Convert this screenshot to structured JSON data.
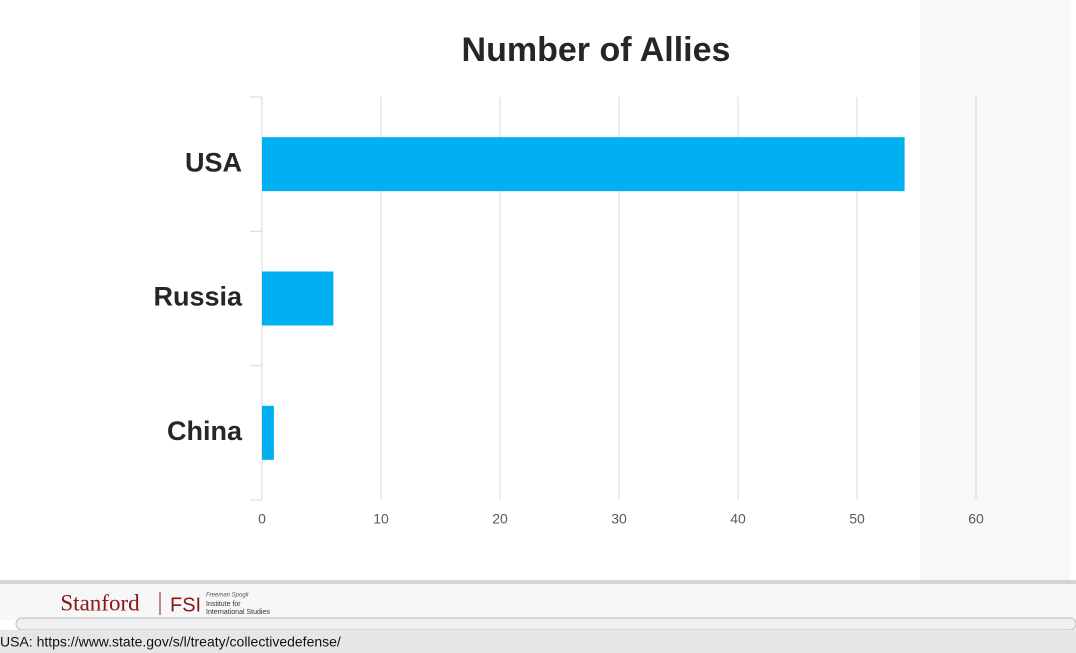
{
  "chart_data": {
    "type": "bar",
    "orientation": "horizontal",
    "title": "Number of Allies",
    "categories": [
      "USA",
      "Russia",
      "China"
    ],
    "values": [
      54,
      6,
      1
    ],
    "color": "#00b0f0",
    "xlim": [
      0,
      60
    ],
    "xticks": [
      0,
      10,
      20,
      30,
      40,
      50,
      60
    ],
    "grid": true
  },
  "footer": {
    "logo": "Stanford",
    "fsi": "FSI",
    "fsi_lines": [
      "Freeman Spogli",
      "Institute for",
      "International Studies"
    ],
    "source": "USA: https://www.state.gov/s/l/treaty/collectivedefense/"
  }
}
